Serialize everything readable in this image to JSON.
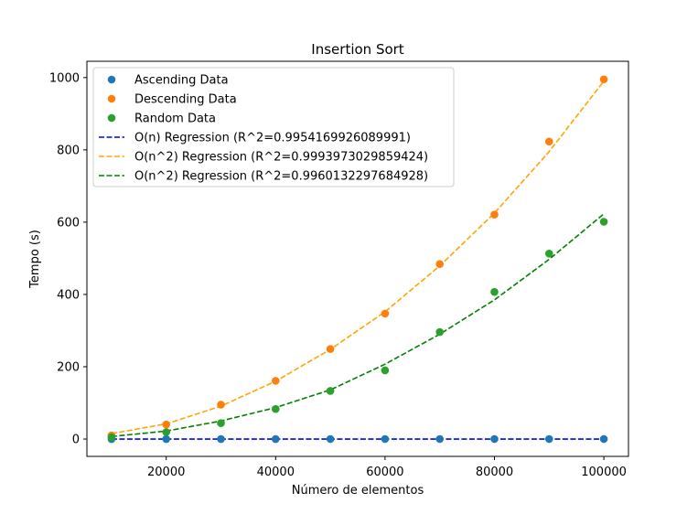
{
  "chart_data": {
    "type": "scatter",
    "title": "Insertion Sort",
    "xlabel": "Número de elementos",
    "ylabel": "Tempo (s)",
    "xlim": [
      5500,
      104500
    ],
    "ylim": [
      -48,
      1045
    ],
    "xticks": [
      20000,
      40000,
      60000,
      80000,
      100000
    ],
    "yticks": [
      0,
      200,
      400,
      600,
      800,
      1000
    ],
    "grid": false,
    "legend_position": "top-left",
    "x": [
      10000,
      20000,
      30000,
      40000,
      50000,
      60000,
      70000,
      80000,
      90000,
      100000
    ],
    "series": [
      {
        "name": "Ascending Data",
        "kind": "points",
        "color": "#1f77b4",
        "values": [
          0.002,
          0.004,
          0.006,
          0.008,
          0.01,
          0.012,
          0.014,
          0.016,
          0.018,
          0.02
        ]
      },
      {
        "name": "Descending Data",
        "kind": "points",
        "color": "#ff7f0e",
        "values": [
          10,
          40,
          95,
          161,
          249,
          347,
          484,
          621,
          823,
          995
        ]
      },
      {
        "name": "Random Data",
        "kind": "points",
        "color": "#2ca02c",
        "values": [
          5,
          19,
          44,
          83,
          133,
          190,
          296,
          407,
          513,
          601
        ]
      },
      {
        "name": "O(n) Regression (R^2=0.9954169926089991)",
        "kind": "line",
        "color": "#0000ff",
        "values": [
          0.002,
          0.004,
          0.006,
          0.008,
          0.01,
          0.012,
          0.014,
          0.016,
          0.018,
          0.02
        ]
      },
      {
        "name": "O(n^2) Regression (R^2=0.9993973029859424)",
        "kind": "line",
        "color": "#ffa500",
        "values": [
          15,
          42,
          91,
          160,
          248,
          352,
          479,
          625,
          795,
          990
        ]
      },
      {
        "name": "O(n^2) Regression (R^2=0.9960132297684928)",
        "kind": "line",
        "color": "#008000",
        "values": [
          7,
          22,
          50,
          87,
          136,
          207,
          290,
          385,
          497,
          623
        ]
      }
    ]
  }
}
